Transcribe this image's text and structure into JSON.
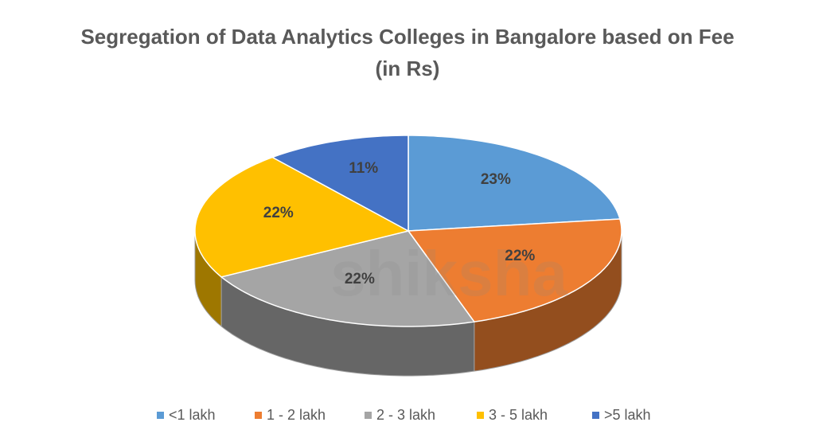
{
  "chart_data": {
    "type": "pie3d",
    "title": "Segregation of Data Analytics Colleges in Bangalore based on Fee (in Rs)",
    "categories": [
      "<1 lakh",
      "1 - 2 lakh",
      "2 - 3 lakh",
      "3 - 5 lakh",
      ">5 lakh"
    ],
    "values": [
      23,
      22,
      22,
      22,
      11
    ],
    "value_labels": [
      "23%",
      "22%",
      "22%",
      "22%",
      "11%"
    ],
    "colors": [
      "#5b9bd5",
      "#ed7d31",
      "#a5a5a5",
      "#ffc000",
      "#4472c4"
    ],
    "legend": "bottom",
    "watermark": "shiksha"
  }
}
